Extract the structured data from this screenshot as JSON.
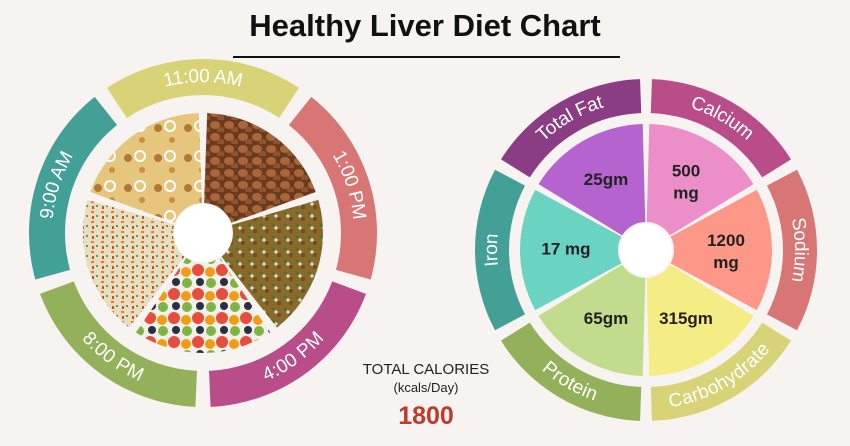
{
  "title": "Healthy Liver Diet Chart",
  "meal_times": [
    {
      "label": "9:00 AM",
      "color": "#43a097"
    },
    {
      "label": "11:00 AM",
      "color": "#d7d376"
    },
    {
      "label": "1:00 PM",
      "color": "#d77674"
    },
    {
      "label": "4:00 PM",
      "color": "#b84d8a"
    },
    {
      "label": "8:00 PM",
      "color": "#93b05a"
    }
  ],
  "meal_photos": [
    {
      "icon": "paratha-with-onion-photo"
    },
    {
      "icon": "boiled-peanuts-photo"
    },
    {
      "icon": "lentil-curry-photo"
    },
    {
      "icon": "fruit-bowl-photo"
    },
    {
      "icon": "vegetable-fried-rice-photo"
    }
  ],
  "nutrients": [
    {
      "name": "Total Fat",
      "value": "25gm",
      "outer_color": "#8a3d82",
      "inner_color": "#b563cf"
    },
    {
      "name": "Calcium",
      "value": "500 mg",
      "outer_color": "#b84d8a",
      "inner_color": "#ec8fc8"
    },
    {
      "name": "Sodium",
      "value": "1200 mg",
      "outer_color": "#d77674",
      "inner_color": "#fd9788"
    },
    {
      "name": "Carbohydrate",
      "value": "315gm",
      "outer_color": "#d7d376",
      "inner_color": "#f4ec84"
    },
    {
      "name": "Protein",
      "value": "65gm",
      "outer_color": "#93b05a",
      "inner_color": "#c2dc8e"
    },
    {
      "name": "Iron",
      "value": "17 mg",
      "outer_color": "#43a097",
      "inner_color": "#6ad3c2"
    }
  ],
  "total_calories": {
    "title": "TOTAL CALORIES",
    "unit": "(kcals/Day)",
    "value": "1800"
  }
}
